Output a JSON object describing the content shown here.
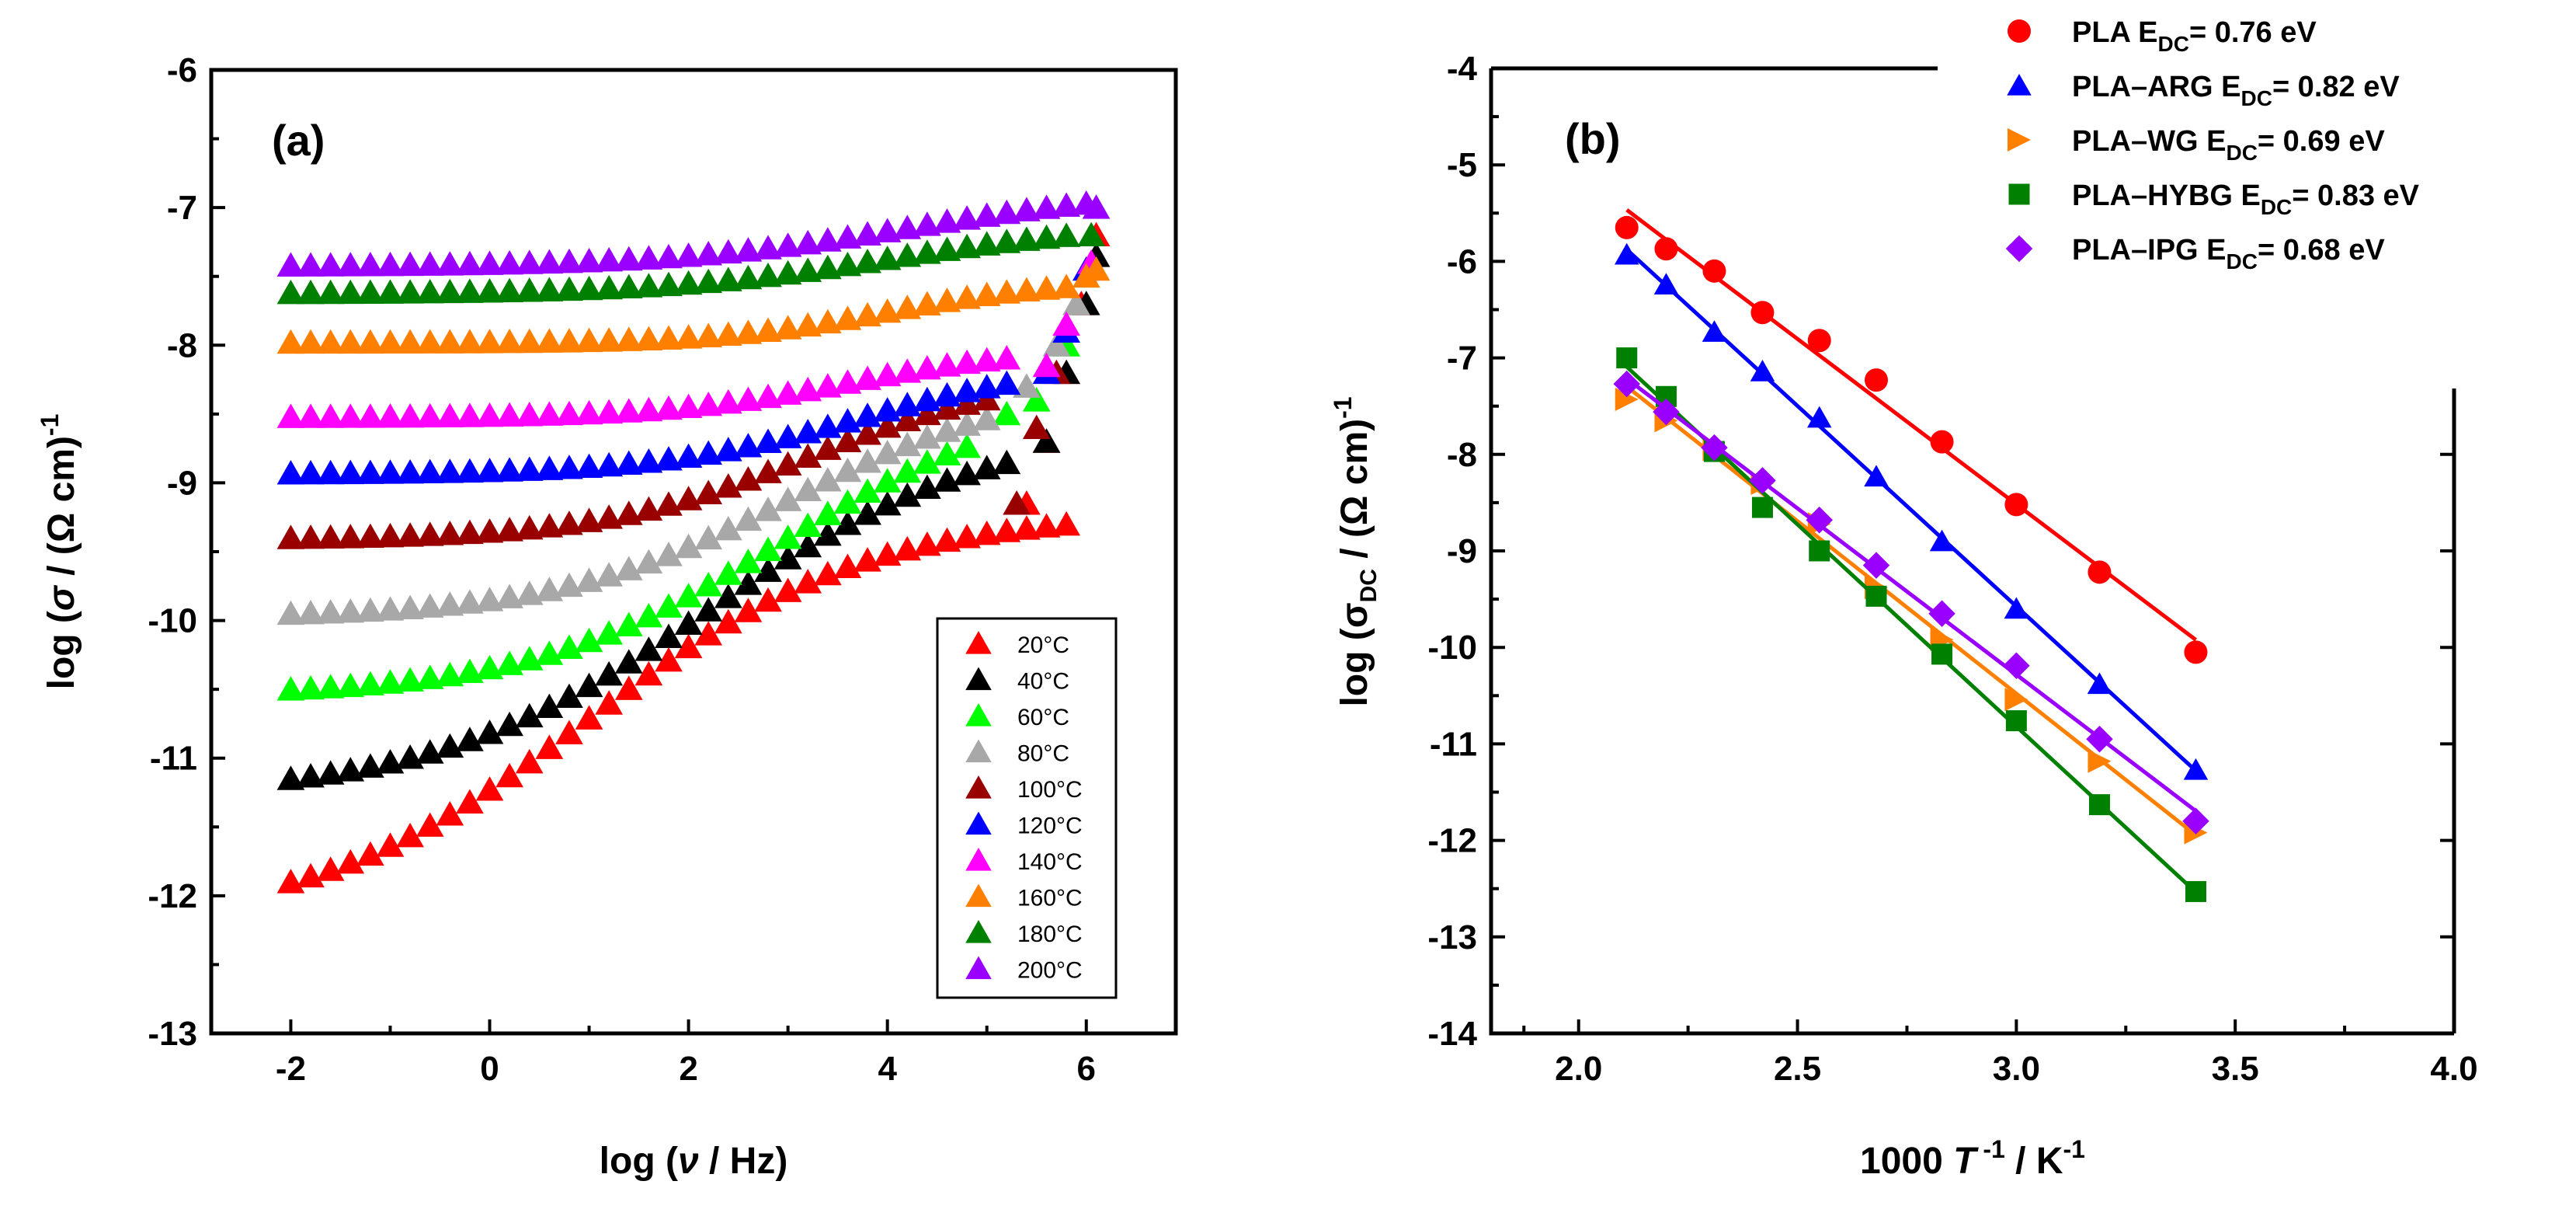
{
  "chart_data": [
    {
      "type": "scatter",
      "panel_label": "(a)",
      "xlabel": {
        "pre": "log (",
        "sym": "ν",
        "post": " / Hz)"
      },
      "ylabel": {
        "pre": "log (",
        "sym": "σ",
        "post": " / (Ω cm)",
        "sup": "-1"
      },
      "xlim": [
        -2.8,
        6.9
      ],
      "ylim": [
        -13,
        -6
      ],
      "xticks": [
        -2,
        0,
        2,
        4,
        6
      ],
      "xtick_labels": [
        "-2",
        "0",
        "2",
        "4",
        "6"
      ],
      "yticks": [
        -13,
        -12,
        -11,
        -10,
        -9,
        -8,
        -7,
        -6
      ],
      "ytick_labels": [
        "-13",
        "-12",
        "-11",
        "-10",
        "-9",
        "-8",
        "-7",
        "-6"
      ],
      "legend_position": "lower-right",
      "series": [
        {
          "name": "20°C",
          "color": "#ff0000",
          "start": -11.9,
          "x_end": 5.8,
          "k": 0.72,
          "x0": 1.0,
          "rise": 3.0,
          "tail": [
            [
              5.4,
              -9.15
            ],
            [
              5.6,
              -8.7
            ],
            [
              5.8,
              -8.2
            ],
            [
              5.95,
              -7.7
            ],
            [
              6.1,
              -7.2
            ]
          ]
        },
        {
          "name": "40°C",
          "color": "#000000",
          "start": -11.15,
          "x_end": 5.3,
          "k": 0.72,
          "x0": 2.2,
          "rise": 2.7,
          "tail": [
            [
              5.6,
              -8.7
            ],
            [
              5.8,
              -8.2
            ],
            [
              6.0,
              -7.7
            ],
            [
              6.1,
              -7.35
            ]
          ]
        },
        {
          "name": "60°C",
          "color": "#00ff00",
          "start": -10.5,
          "x_end": 4.9,
          "k": 0.8,
          "x0": 2.9,
          "rise": 2.2,
          "tail": [
            [
              5.2,
              -8.5
            ],
            [
              5.5,
              -8.4
            ],
            [
              5.8,
              -8.0
            ],
            [
              6.0,
              -7.5
            ]
          ]
        },
        {
          "name": "80°C",
          "color": "#a8a8a8",
          "start": -9.95,
          "x_end": 5.1,
          "k": 0.85,
          "x0": 3.0,
          "rise": 1.7,
          "tail": [
            [
              5.4,
              -8.3
            ],
            [
              5.7,
              -8.0
            ],
            [
              5.9,
              -7.7
            ]
          ]
        },
        {
          "name": "100°C",
          "color": "#990000",
          "start": -9.4,
          "x_end": 5.1,
          "k": 0.95,
          "x0": 3.2,
          "rise": 1.2,
          "tail": [
            [
              5.3,
              -9.15
            ],
            [
              5.5,
              -8.6
            ],
            [
              5.7,
              -8.2
            ]
          ]
        },
        {
          "name": "120°C",
          "color": "#0000ff",
          "start": -8.93,
          "x_end": 5.3,
          "k": 1.0,
          "x0": 3.7,
          "rise": 0.8,
          "tail": [
            [
              5.6,
              -8.2
            ],
            [
              5.8,
              -7.9
            ],
            [
              6.0,
              -7.45
            ]
          ]
        },
        {
          "name": "140°C",
          "color": "#ff00ff",
          "start": -8.52,
          "x_end": 5.2,
          "k": 1.1,
          "x0": 3.6,
          "rise": 0.5,
          "tail": [
            [
              5.6,
              -8.15
            ],
            [
              5.8,
              -7.85
            ],
            [
              6.05,
              -7.4
            ]
          ]
        },
        {
          "name": "160°C",
          "color": "#ff8000",
          "start": -7.98,
          "x_end": 5.8,
          "k": 1.2,
          "x0": 4.0,
          "rise": 0.45,
          "tail": [
            [
              6.0,
              -7.5
            ],
            [
              6.1,
              -7.45
            ]
          ]
        },
        {
          "name": "180°C",
          "color": "#008000",
          "start": -7.62,
          "x_end": 5.9,
          "k": 0.9,
          "x0": 4.0,
          "rise": 0.5,
          "tail": [
            [
              6.05,
              -7.2
            ]
          ]
        },
        {
          "name": "200°C",
          "color": "#9900ff",
          "start": -7.42,
          "x_end": 6.0,
          "k": 0.85,
          "x0": 4.2,
          "rise": 0.55,
          "tail": [
            [
              6.1,
              -7.0
            ]
          ]
        }
      ]
    },
    {
      "type": "scatter",
      "panel_label": "(b)",
      "xlabel": {
        "pre": "1000 ",
        "sym": "T",
        "sup1": " -1",
        "post": " / K",
        "sup2": "-1"
      },
      "ylabel": {
        "pre": "log (σ",
        "sub": "DC",
        "post": " / (Ω cm)",
        "sup": "-1"
      },
      "xlim": [
        1.8,
        4.0
      ],
      "ylim": [
        -14,
        -4
      ],
      "xticks": [
        2.0,
        2.5,
        3.0,
        3.5,
        4.0
      ],
      "xtick_labels": [
        "2.0",
        "2.5",
        "3.0",
        "3.5",
        "4.0"
      ],
      "yticks": [
        -14,
        -13,
        -12,
        -11,
        -10,
        -9,
        -8,
        -7,
        -6,
        -5,
        -4
      ],
      "ytick_labels": [
        "-14",
        "-13",
        "-12",
        "-11",
        "-10",
        "-9",
        "-8",
        "-7",
        "-6",
        "-5",
        "-4"
      ],
      "x": [
        2.11,
        2.2,
        2.31,
        2.42,
        2.55,
        2.68,
        2.83,
        3.0,
        3.19,
        3.41
      ],
      "legend_position": "top-right",
      "series": [
        {
          "name": "PLA E",
          "sub": "DC",
          "suffix": "= 0.76 eV",
          "color": "#ff0000",
          "marker": "circle",
          "values": [
            -5.65,
            -5.87,
            -6.1,
            -6.53,
            -6.82,
            -7.23,
            -7.87,
            -8.52,
            -9.22,
            -10.05
          ]
        },
        {
          "name": "PLA–ARG E",
          "sub": "DC",
          "suffix": "= 0.82 eV",
          "color": "#0000ff",
          "marker": "triangle-up",
          "values": [
            -5.93,
            -6.24,
            -6.73,
            -7.14,
            -7.62,
            -8.23,
            -8.9,
            -9.6,
            -10.38,
            -11.27
          ]
        },
        {
          "name": "PLA–WG E",
          "sub": "DC",
          "suffix": "= 0.69 eV",
          "color": "#ff8000",
          "marker": "triangle-right",
          "values": [
            -7.43,
            -7.65,
            -7.95,
            -8.3,
            -8.72,
            -9.38,
            -9.92,
            -10.54,
            -11.18,
            -11.92
          ]
        },
        {
          "name": "PLA–HYBG E",
          "sub": "DC",
          "suffix": "= 0.83 eV",
          "color": "#008000",
          "marker": "square",
          "values": [
            -7.0,
            -7.4,
            -7.97,
            -8.55,
            -9.0,
            -9.47,
            -10.07,
            -10.76,
            -11.63,
            -12.53
          ]
        },
        {
          "name": "PLA–IPG E",
          "sub": "DC",
          "suffix": "= 0.68 eV",
          "color": "#9900ff",
          "marker": "diamond",
          "values": [
            -7.27,
            -7.56,
            -7.93,
            -8.27,
            -8.68,
            -9.15,
            -9.65,
            -10.19,
            -10.95,
            -11.8
          ]
        }
      ]
    }
  ]
}
